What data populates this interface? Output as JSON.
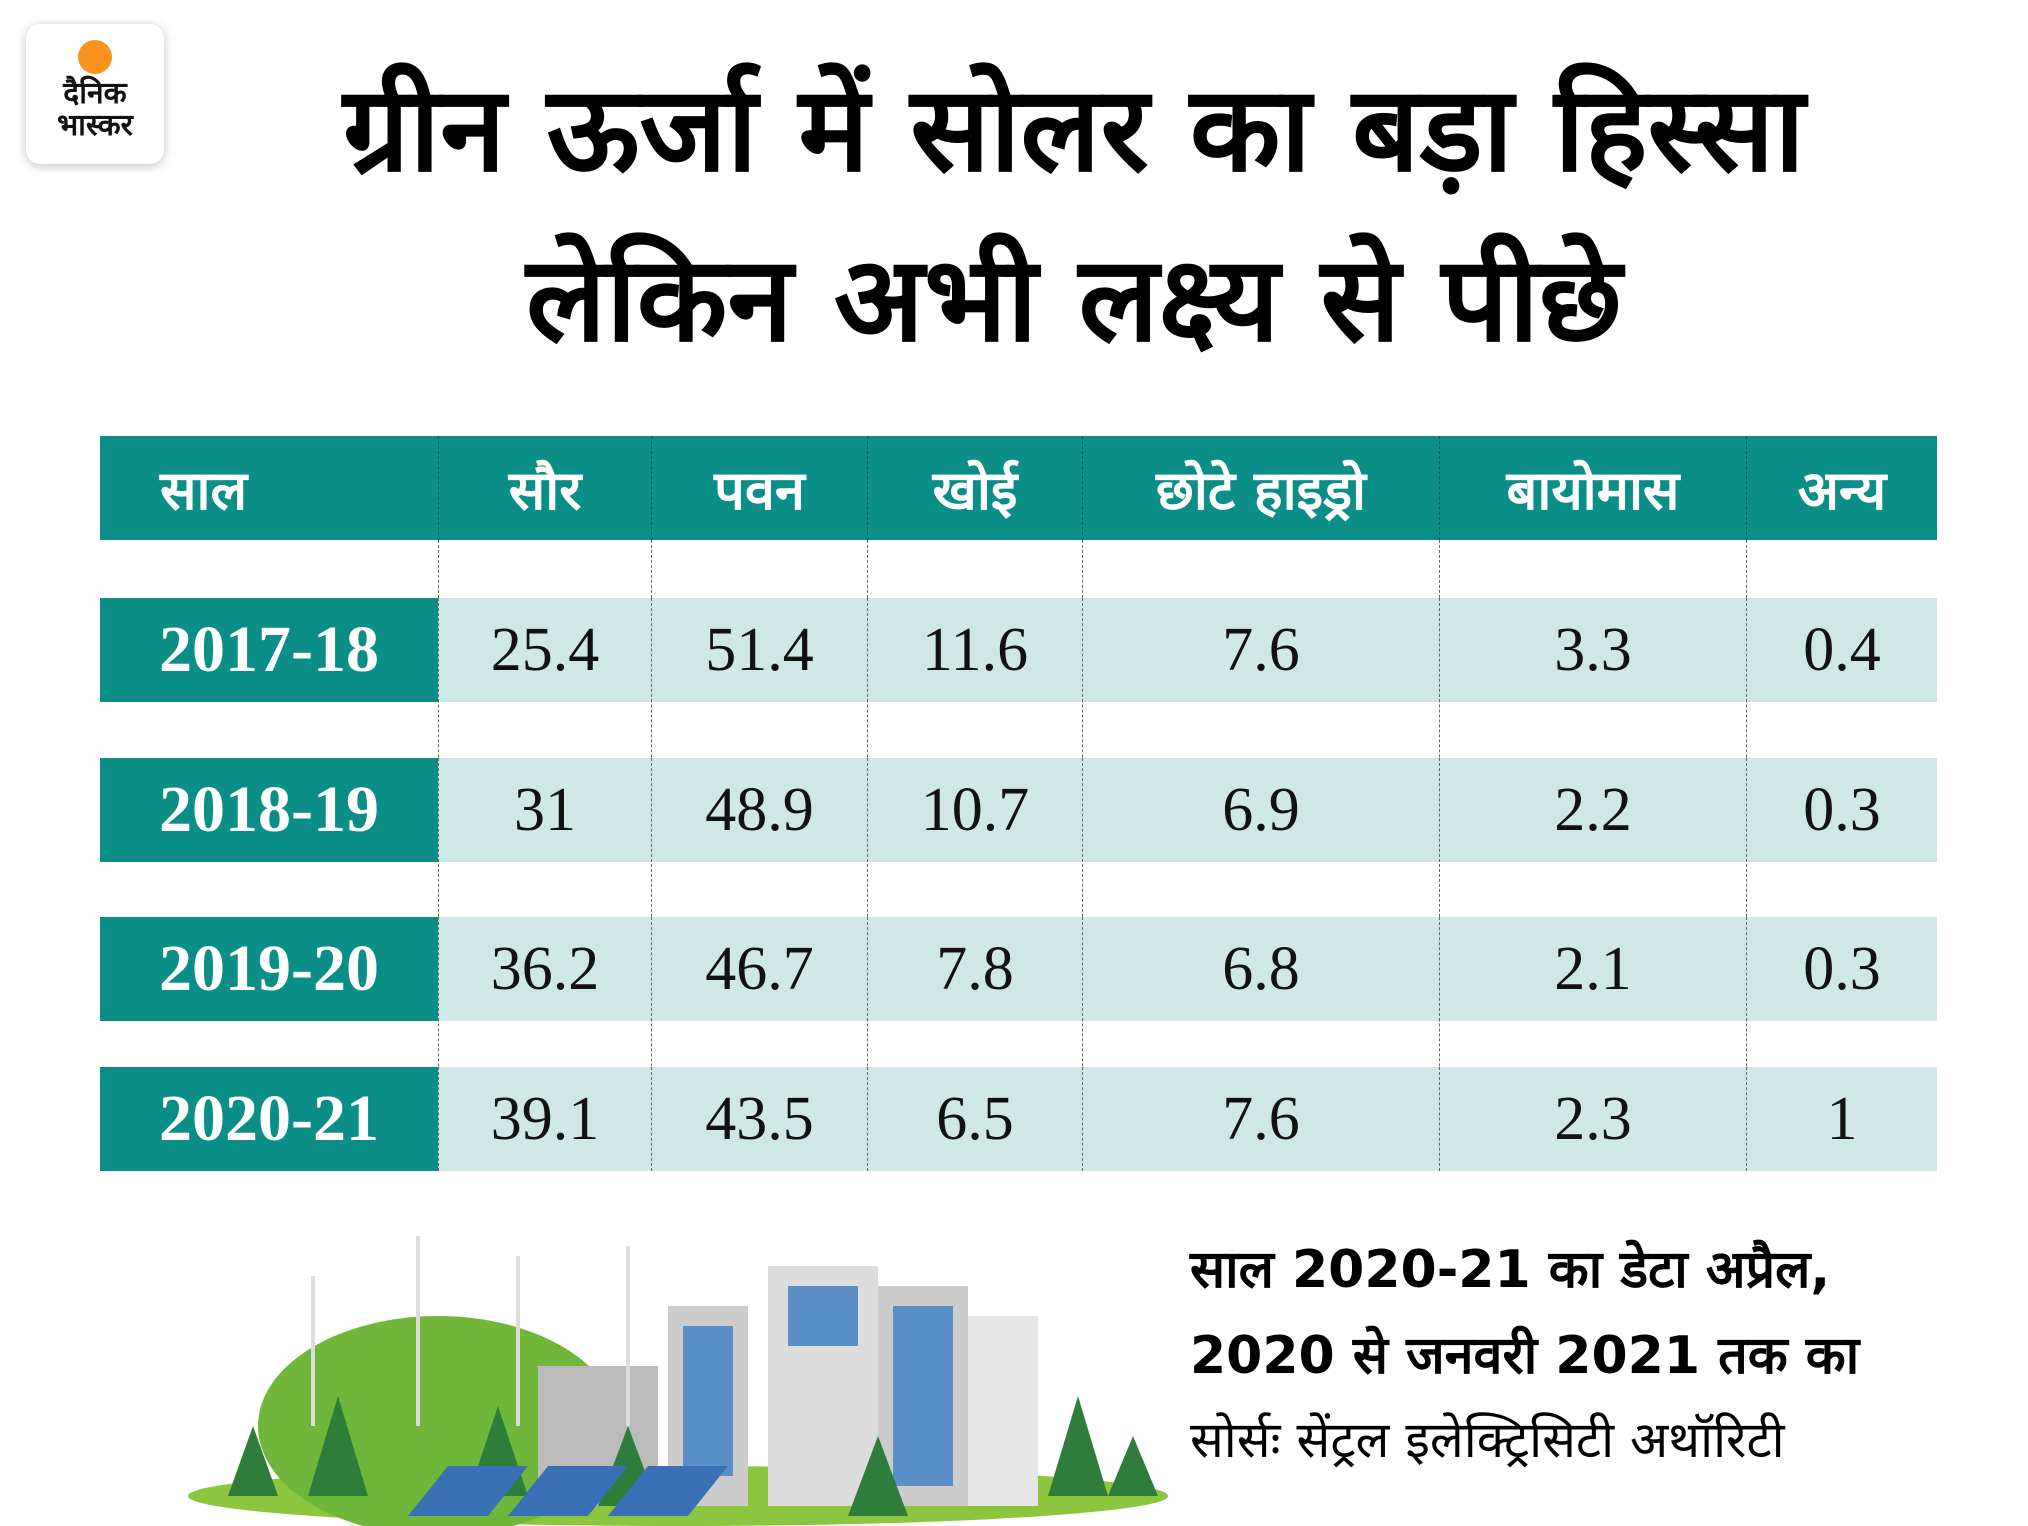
{
  "logo": {
    "line1": "दैनिक",
    "line2": "भास्कर"
  },
  "title": {
    "line1": "ग्रीन ऊर्जा में सोलर का बड़ा हिस्सा",
    "line2": "लेकिन अभी लक्ष्य से पीछे"
  },
  "table": {
    "headers": [
      "साल",
      "सौर",
      "पवन",
      "खोई",
      "छोटे हाइड्रो",
      "बायोमास",
      "अन्य"
    ],
    "rows": [
      [
        "2017-18",
        "25.4",
        "51.4",
        "11.6",
        "7.6",
        "3.3",
        "0.4"
      ],
      [
        "2018-19",
        "31",
        "48.9",
        "10.7",
        "6.9",
        "2.2",
        "0.3"
      ],
      [
        "2019-20",
        "36.2",
        "46.7",
        "7.8",
        "6.8",
        "2.1",
        "0.3"
      ],
      [
        "2020-21",
        "39.1",
        "43.5",
        "6.5",
        "7.6",
        "2.3",
        "1"
      ]
    ]
  },
  "note": {
    "line1": "साल 2020-21 का डेटा अप्रैल,",
    "line2": "2020 से जनवरी 2021 तक का",
    "source": "सोर्सः सेंट्रल इलेक्ट्रिसिटी अथॉरिटी"
  },
  "colors": {
    "header": "#0b8e87",
    "row": "#cfe8e5",
    "logo_sun": "#f7931e"
  }
}
